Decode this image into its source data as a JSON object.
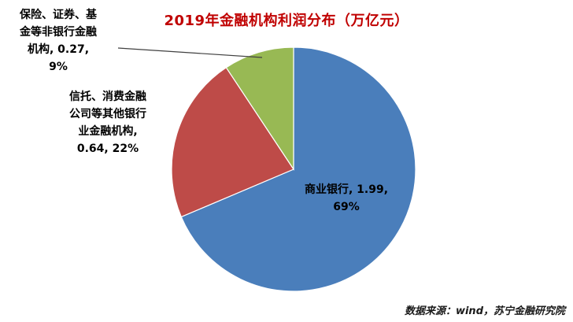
{
  "chart_data": {
    "type": "pie",
    "title": "2019年金融机构利润分布（万亿元）",
    "categories": [
      "商业银行",
      "信托、消费金融公司等其他银行业金融机构",
      "保险、证券、基金等非银行金融机构"
    ],
    "values": [
      1.99,
      0.64,
      0.27
    ],
    "percents": [
      69,
      22,
      9
    ],
    "unit": "万亿元",
    "colors": [
      "#4A7EBB",
      "#BE4B48",
      "#98B954"
    ],
    "data_labels": [
      "商业银行, 1.99, 69%",
      "信托、消费金融公司等其他银行业金融机构, 0.64, 22%",
      "保险、证券、基金等非银行金融机构, 0.27, 9%"
    ],
    "legend": "none",
    "start_angle_deg": -90,
    "direction": "clockwise",
    "source_note": "数据来源：wind，苏宁金融研究院"
  }
}
